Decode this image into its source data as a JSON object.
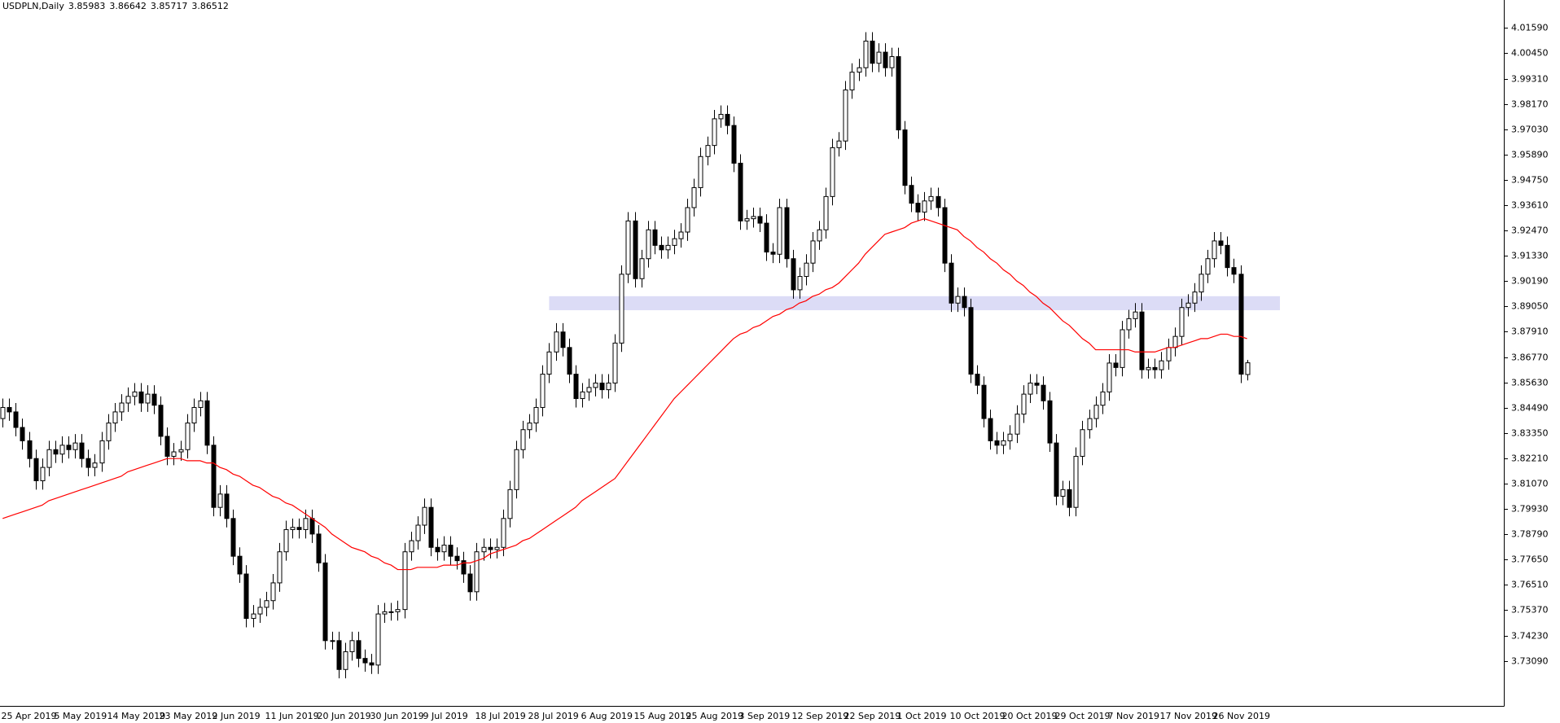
{
  "chart_data": {
    "type": "candlestick",
    "title": "USDPLN,Daily",
    "up_color": "#ffffff",
    "down_color": "#000000",
    "edge_color": "#000000",
    "xlim": [
      -0.4,
      228
    ],
    "ylim": [
      3.7106,
      4.0285
    ],
    "yticks": [
      {
        "value": 4.0159,
        "label": "4.01590"
      },
      {
        "value": 4.0045,
        "label": "4.00450"
      },
      {
        "value": 3.9931,
        "label": "3.99310"
      },
      {
        "value": 3.9817,
        "label": "3.98170"
      },
      {
        "value": 3.9703,
        "label": "3.97030"
      },
      {
        "value": 3.9589,
        "label": "3.95890"
      },
      {
        "value": 3.9475,
        "label": "3.94750"
      },
      {
        "value": 3.9361,
        "label": "3.93610"
      },
      {
        "value": 3.9247,
        "label": "3.92470"
      },
      {
        "value": 3.9133,
        "label": "3.91330"
      },
      {
        "value": 3.9019,
        "label": "3.90190"
      },
      {
        "value": 3.8905,
        "label": "3.89050"
      },
      {
        "value": 3.8791,
        "label": "3.87910"
      },
      {
        "value": 3.8677,
        "label": "3.86770"
      },
      {
        "value": 3.8563,
        "label": "3.85630"
      },
      {
        "value": 3.8449,
        "label": "3.84490"
      },
      {
        "value": 3.8335,
        "label": "3.83350"
      },
      {
        "value": 3.8221,
        "label": "3.82210"
      },
      {
        "value": 3.8107,
        "label": "3.81070"
      },
      {
        "value": 3.7993,
        "label": "3.79930"
      },
      {
        "value": 3.7879,
        "label": "3.78790"
      },
      {
        "value": 3.7765,
        "label": "3.77650"
      },
      {
        "value": 3.7651,
        "label": "3.76510"
      },
      {
        "value": 3.7537,
        "label": "3.75370"
      },
      {
        "value": 3.7423,
        "label": "3.74230"
      },
      {
        "value": 3.7309,
        "label": "3.73090"
      }
    ],
    "categories": [
      "25 Apr 2019",
      null,
      null,
      null,
      null,
      null,
      null,
      null,
      "5 May 2019",
      null,
      null,
      null,
      null,
      null,
      null,
      null,
      "14 May 2019",
      null,
      null,
      null,
      null,
      null,
      null,
      null,
      "23 May 2019",
      null,
      null,
      null,
      null,
      null,
      null,
      null,
      "2 Jun 2019",
      null,
      null,
      null,
      null,
      null,
      null,
      null,
      "11 Jun 2019",
      null,
      null,
      null,
      null,
      null,
      null,
      null,
      "20 Jun 2019",
      null,
      null,
      null,
      null,
      null,
      null,
      null,
      "30 Jun 2019",
      null,
      null,
      null,
      null,
      null,
      null,
      null,
      "9 Jul 2019",
      null,
      null,
      null,
      null,
      null,
      null,
      null,
      "18 Jul 2019",
      null,
      null,
      null,
      null,
      null,
      null,
      null,
      "28 Jul 2019",
      null,
      null,
      null,
      null,
      null,
      null,
      null,
      "6 Aug 2019",
      null,
      null,
      null,
      null,
      null,
      null,
      null,
      "15 Aug 2019",
      null,
      null,
      null,
      null,
      null,
      null,
      null,
      "25 Aug 2019",
      null,
      null,
      null,
      null,
      null,
      null,
      null,
      "3 Sep 2019",
      null,
      null,
      null,
      null,
      null,
      null,
      null,
      "12 Sep 2019",
      null,
      null,
      null,
      null,
      null,
      null,
      null,
      "22 Sep 2019",
      null,
      null,
      null,
      null,
      null,
      null,
      null,
      "1 Oct 2019",
      null,
      null,
      null,
      null,
      null,
      null,
      null,
      "10 Oct 2019",
      null,
      null,
      null,
      null,
      null,
      null,
      null,
      "20 Oct 2019",
      null,
      null,
      null,
      null,
      null,
      null,
      null,
      "29 Oct 2019",
      null,
      null,
      null,
      null,
      null,
      null,
      null,
      "7 Nov 2019",
      null,
      null,
      null,
      null,
      null,
      null,
      null,
      "17 Nov 2019",
      null,
      null,
      null,
      null,
      null,
      null,
      null,
      "26 Nov 2019",
      null,
      null,
      null,
      null,
      null
    ],
    "candles": {
      "open": [
        3.84,
        3.845,
        3.843,
        3.836,
        3.83,
        3.822,
        3.812,
        3.818,
        3.826,
        3.824,
        3.828,
        3.826,
        3.829,
        3.822,
        3.818,
        3.82,
        3.83,
        3.838,
        3.843,
        3.847,
        3.85,
        3.852,
        3.847,
        3.851,
        3.846,
        3.832,
        3.823,
        3.825,
        3.826,
        3.838,
        3.845,
        3.848,
        3.828,
        3.8,
        3.806,
        3.795,
        3.778,
        3.77,
        3.75,
        3.752,
        3.755,
        3.758,
        3.766,
        3.78,
        3.79,
        3.791,
        3.79,
        3.795,
        3.788,
        3.775,
        3.74,
        3.74,
        3.727,
        3.735,
        3.74,
        3.732,
        3.73,
        3.729,
        3.752,
        3.753,
        3.753,
        3.754,
        3.78,
        3.785,
        3.792,
        3.8,
        3.782,
        3.78,
        3.783,
        3.778,
        3.776,
        3.77,
        3.762,
        3.78,
        3.782,
        3.781,
        3.782,
        3.795,
        3.808,
        3.826,
        3.835,
        3.838,
        3.845,
        3.86,
        3.87,
        3.879,
        3.872,
        3.86,
        3.849,
        3.852,
        3.854,
        3.856,
        3.853,
        3.856,
        3.874,
        3.905,
        3.929,
        3.903,
        3.912,
        3.925,
        3.918,
        3.916,
        3.918,
        3.921,
        3.924,
        3.935,
        3.944,
        3.958,
        3.963,
        3.975,
        3.977,
        3.972,
        3.955,
        3.929,
        3.93,
        3.931,
        3.928,
        3.915,
        3.914,
        3.935,
        3.912,
        3.898,
        3.904,
        3.91,
        3.92,
        3.925,
        3.94,
        3.962,
        3.965,
        3.988,
        3.996,
        3.998,
        4.01,
        4.0,
        4.005,
        3.998,
        4.003,
        3.97,
        3.945,
        3.937,
        3.933,
        3.938,
        3.94,
        3.935,
        3.91,
        3.892,
        3.895,
        3.89,
        3.86,
        3.855,
        3.84,
        3.83,
        3.828,
        3.83,
        3.833,
        3.842,
        3.851,
        3.856,
        3.855,
        3.848,
        3.829,
        3.805,
        3.808,
        3.8,
        3.823,
        3.835,
        3.84,
        3.846,
        3.852,
        3.865,
        3.863,
        3.88,
        3.885,
        3.888,
        3.862,
        3.863,
        3.862,
        3.866,
        3.872,
        3.877,
        3.89,
        3.892,
        3.897,
        3.905,
        3.912,
        3.92,
        3.918,
        3.908,
        3.905,
        3.85983
      ],
      "high": [
        3.849,
        3.849,
        3.847,
        3.84,
        3.834,
        3.826,
        3.822,
        3.83,
        3.83,
        3.832,
        3.832,
        3.833,
        3.833,
        3.826,
        3.824,
        3.834,
        3.842,
        3.847,
        3.851,
        3.854,
        3.856,
        3.856,
        3.855,
        3.855,
        3.85,
        3.836,
        3.829,
        3.83,
        3.842,
        3.849,
        3.852,
        3.852,
        3.832,
        3.81,
        3.81,
        3.799,
        3.782,
        3.774,
        3.756,
        3.759,
        3.762,
        3.77,
        3.784,
        3.794,
        3.795,
        3.795,
        3.799,
        3.799,
        3.792,
        3.779,
        3.744,
        3.744,
        3.739,
        3.744,
        3.744,
        3.736,
        3.734,
        3.756,
        3.757,
        3.757,
        3.758,
        3.784,
        3.789,
        3.796,
        3.804,
        3.804,
        3.786,
        3.787,
        3.787,
        3.782,
        3.78,
        3.774,
        3.784,
        3.786,
        3.786,
        3.786,
        3.799,
        3.812,
        3.83,
        3.839,
        3.842,
        3.849,
        3.864,
        3.874,
        3.883,
        3.883,
        3.876,
        3.864,
        3.856,
        3.858,
        3.86,
        3.86,
        3.86,
        3.878,
        3.909,
        3.933,
        3.933,
        3.916,
        3.929,
        3.929,
        3.922,
        3.922,
        3.925,
        3.928,
        3.939,
        3.948,
        3.962,
        3.967,
        3.979,
        3.981,
        3.981,
        3.976,
        3.959,
        3.934,
        3.935,
        3.935,
        3.932,
        3.919,
        3.939,
        3.939,
        3.916,
        3.908,
        3.914,
        3.924,
        3.929,
        3.944,
        3.966,
        3.969,
        3.992,
        4.0,
        4.002,
        4.014,
        4.014,
        4.009,
        4.009,
        4.007,
        4.007,
        3.974,
        3.949,
        3.941,
        3.942,
        3.944,
        3.944,
        3.939,
        3.914,
        3.899,
        3.899,
        3.894,
        3.864,
        3.859,
        3.844,
        3.834,
        3.834,
        3.837,
        3.846,
        3.855,
        3.86,
        3.86,
        3.859,
        3.852,
        3.833,
        3.812,
        3.812,
        3.827,
        3.839,
        3.844,
        3.85,
        3.856,
        3.869,
        3.869,
        3.884,
        3.889,
        3.892,
        3.892,
        3.867,
        3.867,
        3.87,
        3.876,
        3.881,
        3.894,
        3.896,
        3.901,
        3.909,
        3.916,
        3.924,
        3.924,
        3.922,
        3.912,
        3.909,
        3.86642
      ],
      "low": [
        3.836,
        3.839,
        3.832,
        3.826,
        3.818,
        3.808,
        3.808,
        3.814,
        3.82,
        3.82,
        3.822,
        3.822,
        3.818,
        3.814,
        3.814,
        3.816,
        3.826,
        3.834,
        3.839,
        3.843,
        3.846,
        3.843,
        3.843,
        3.842,
        3.828,
        3.819,
        3.819,
        3.821,
        3.822,
        3.834,
        3.841,
        3.824,
        3.796,
        3.796,
        3.791,
        3.774,
        3.766,
        3.746,
        3.746,
        3.748,
        3.751,
        3.754,
        3.762,
        3.776,
        3.786,
        3.786,
        3.786,
        3.784,
        3.771,
        3.736,
        3.736,
        3.723,
        3.723,
        3.731,
        3.728,
        3.726,
        3.725,
        3.725,
        3.748,
        3.749,
        3.749,
        3.75,
        3.776,
        3.781,
        3.788,
        3.778,
        3.776,
        3.776,
        3.774,
        3.772,
        3.766,
        3.758,
        3.758,
        3.776,
        3.777,
        3.777,
        3.778,
        3.791,
        3.804,
        3.822,
        3.831,
        3.834,
        3.841,
        3.856,
        3.866,
        3.868,
        3.856,
        3.845,
        3.845,
        3.848,
        3.85,
        3.849,
        3.849,
        3.852,
        3.87,
        3.901,
        3.899,
        3.899,
        3.908,
        3.914,
        3.912,
        3.912,
        3.914,
        3.917,
        3.92,
        3.931,
        3.94,
        3.954,
        3.959,
        3.971,
        3.968,
        3.951,
        3.925,
        3.925,
        3.926,
        3.924,
        3.911,
        3.91,
        3.91,
        3.908,
        3.894,
        3.894,
        3.9,
        3.906,
        3.916,
        3.921,
        3.936,
        3.958,
        3.961,
        3.984,
        3.992,
        3.994,
        3.996,
        3.996,
        3.994,
        3.994,
        3.966,
        3.941,
        3.933,
        3.929,
        3.929,
        3.934,
        3.931,
        3.906,
        3.888,
        3.888,
        3.886,
        3.856,
        3.851,
        3.836,
        3.826,
        3.824,
        3.824,
        3.826,
        3.829,
        3.838,
        3.847,
        3.851,
        3.844,
        3.825,
        3.801,
        3.801,
        3.796,
        3.796,
        3.819,
        3.831,
        3.836,
        3.842,
        3.848,
        3.859,
        3.859,
        3.876,
        3.881,
        3.858,
        3.858,
        3.858,
        3.858,
        3.862,
        3.868,
        3.873,
        3.886,
        3.888,
        3.893,
        3.901,
        3.908,
        3.914,
        3.904,
        3.901,
        3.856,
        3.85717
      ],
      "close": [
        3.845,
        3.843,
        3.836,
        3.83,
        3.822,
        3.812,
        3.818,
        3.826,
        3.824,
        3.828,
        3.826,
        3.829,
        3.822,
        3.818,
        3.82,
        3.83,
        3.838,
        3.843,
        3.847,
        3.85,
        3.852,
        3.847,
        3.851,
        3.846,
        3.832,
        3.823,
        3.825,
        3.826,
        3.838,
        3.845,
        3.848,
        3.828,
        3.8,
        3.806,
        3.795,
        3.778,
        3.77,
        3.75,
        3.752,
        3.755,
        3.758,
        3.766,
        3.78,
        3.79,
        3.791,
        3.79,
        3.795,
        3.788,
        3.775,
        3.74,
        3.74,
        3.727,
        3.735,
        3.74,
        3.732,
        3.73,
        3.729,
        3.752,
        3.753,
        3.753,
        3.754,
        3.78,
        3.785,
        3.792,
        3.8,
        3.782,
        3.78,
        3.783,
        3.778,
        3.776,
        3.77,
        3.762,
        3.78,
        3.782,
        3.781,
        3.782,
        3.795,
        3.808,
        3.826,
        3.835,
        3.838,
        3.845,
        3.86,
        3.87,
        3.879,
        3.872,
        3.86,
        3.849,
        3.852,
        3.854,
        3.856,
        3.853,
        3.856,
        3.874,
        3.905,
        3.929,
        3.903,
        3.912,
        3.925,
        3.918,
        3.916,
        3.918,
        3.921,
        3.924,
        3.935,
        3.944,
        3.958,
        3.963,
        3.975,
        3.977,
        3.972,
        3.955,
        3.929,
        3.93,
        3.931,
        3.928,
        3.915,
        3.914,
        3.935,
        3.912,
        3.898,
        3.904,
        3.91,
        3.92,
        3.925,
        3.94,
        3.962,
        3.965,
        3.988,
        3.996,
        3.998,
        4.01,
        4.0,
        4.005,
        3.998,
        4.003,
        3.97,
        3.945,
        3.937,
        3.933,
        3.938,
        3.94,
        3.935,
        3.91,
        3.892,
        3.895,
        3.89,
        3.86,
        3.855,
        3.84,
        3.83,
        3.828,
        3.83,
        3.833,
        3.842,
        3.851,
        3.856,
        3.855,
        3.848,
        3.829,
        3.805,
        3.808,
        3.8,
        3.823,
        3.835,
        3.84,
        3.846,
        3.852,
        3.865,
        3.863,
        3.88,
        3.885,
        3.888,
        3.862,
        3.863,
        3.862,
        3.866,
        3.872,
        3.877,
        3.89,
        3.892,
        3.897,
        3.905,
        3.912,
        3.92,
        3.918,
        3.908,
        3.905,
        3.86,
        3.86512
      ]
    },
    "ma": {
      "color": "#ff0000",
      "values": [
        3.795,
        3.796,
        3.797,
        3.798,
        3.799,
        3.8,
        3.801,
        3.803,
        3.804,
        3.805,
        3.806,
        3.807,
        3.808,
        3.809,
        3.81,
        3.811,
        3.812,
        3.813,
        3.814,
        3.816,
        3.817,
        3.818,
        3.819,
        3.82,
        3.821,
        3.822,
        3.822,
        3.822,
        3.821,
        3.821,
        3.821,
        3.82,
        3.82,
        3.818,
        3.817,
        3.815,
        3.814,
        3.812,
        3.81,
        3.809,
        3.807,
        3.805,
        3.804,
        3.802,
        3.801,
        3.799,
        3.797,
        3.795,
        3.793,
        3.791,
        3.788,
        3.786,
        3.784,
        3.782,
        3.781,
        3.78,
        3.778,
        3.777,
        3.775,
        3.774,
        3.772,
        3.772,
        3.772,
        3.773,
        3.773,
        3.773,
        3.773,
        3.774,
        3.774,
        3.774,
        3.775,
        3.775,
        3.776,
        3.777,
        3.779,
        3.78,
        3.781,
        3.782,
        3.783,
        3.785,
        3.786,
        3.788,
        3.79,
        3.792,
        3.794,
        3.796,
        3.798,
        3.8,
        3.803,
        3.805,
        3.807,
        3.809,
        3.811,
        3.813,
        3.817,
        3.821,
        3.825,
        3.829,
        3.833,
        3.837,
        3.841,
        3.845,
        3.849,
        3.852,
        3.855,
        3.858,
        3.861,
        3.864,
        3.867,
        3.87,
        3.873,
        3.876,
        3.878,
        3.879,
        3.881,
        3.882,
        3.884,
        3.886,
        3.887,
        3.889,
        3.89,
        3.892,
        3.893,
        3.895,
        3.896,
        3.898,
        3.899,
        3.901,
        3.904,
        3.907,
        3.91,
        3.914,
        3.917,
        3.92,
        3.923,
        3.924,
        3.925,
        3.926,
        3.928,
        3.929,
        3.93,
        3.929,
        3.928,
        3.927,
        3.926,
        3.925,
        3.922,
        3.92,
        3.917,
        3.915,
        3.912,
        3.91,
        3.907,
        3.905,
        3.902,
        3.9,
        3.897,
        3.895,
        3.892,
        3.89,
        3.887,
        3.884,
        3.882,
        3.879,
        3.876,
        3.874,
        3.871,
        3.871,
        3.871,
        3.871,
        3.871,
        3.871,
        3.87,
        3.87,
        3.87,
        3.87,
        3.871,
        3.872,
        3.872,
        3.873,
        3.874,
        3.875,
        3.876,
        3.876,
        3.877,
        3.878,
        3.878,
        3.877,
        3.877,
        3.876
      ]
    },
    "zone": {
      "color": "#dcdcf6",
      "xlim": [
        83,
        194
      ],
      "ylim": [
        3.8888,
        3.8951
      ]
    }
  }
}
